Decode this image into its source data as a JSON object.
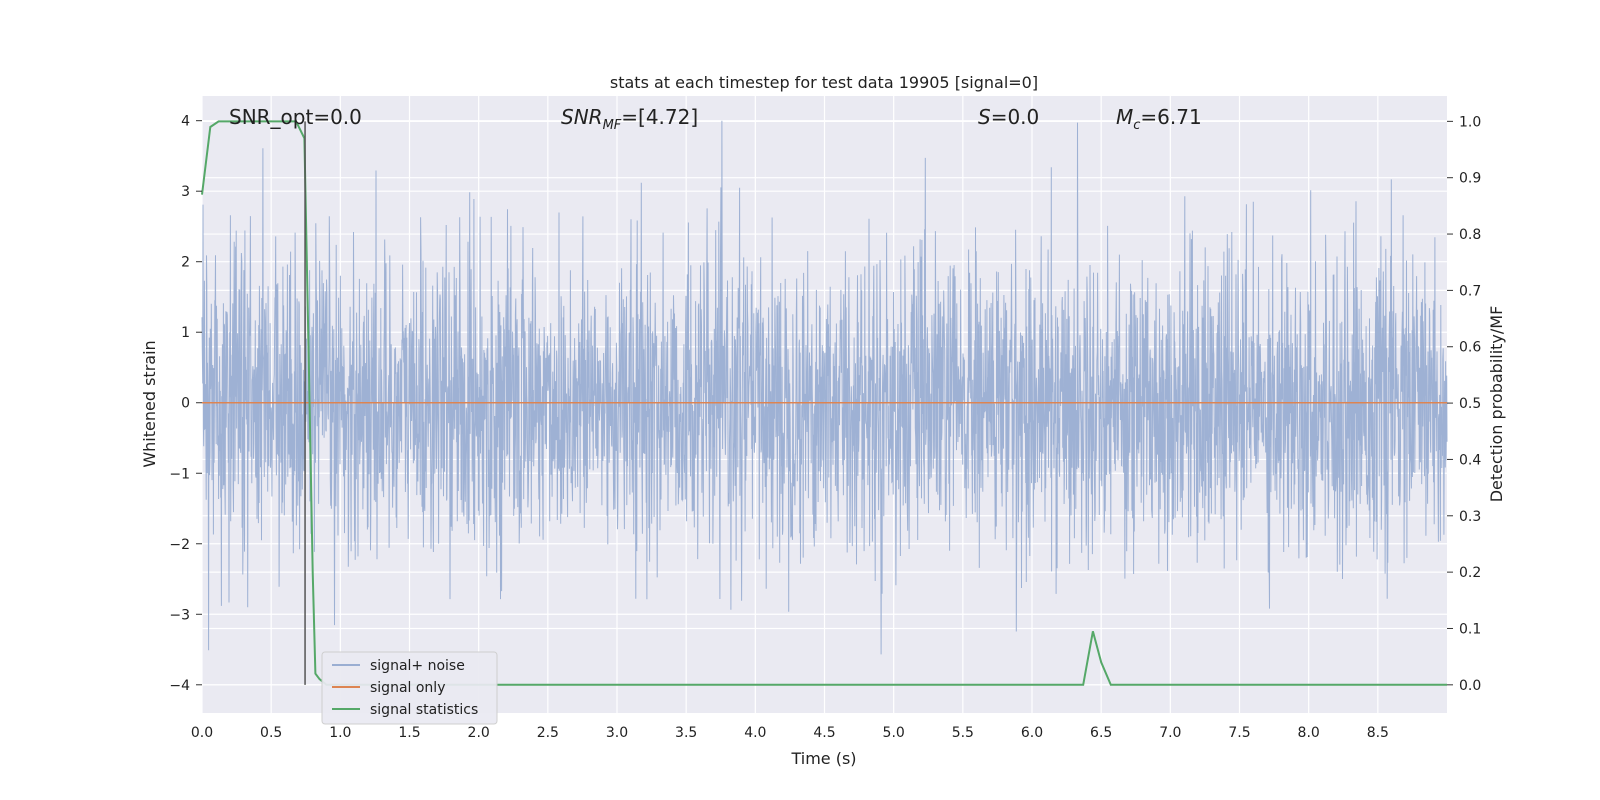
{
  "chart_data": {
    "type": "line",
    "title": "stats at each timestep for test data 19905 [signal=0]",
    "xlabel": "Time (s)",
    "ylabel_left": "Whitened strain",
    "ylabel_right": "Detection probability/MF",
    "xlim": [
      0,
      9.0
    ],
    "ylim_left": [
      -4.4,
      4.35
    ],
    "ylim_right": [
      -0.05,
      1.045
    ],
    "x_ticks": [
      "0.0",
      "0.5",
      "1.0",
      "1.5",
      "2.0",
      "2.5",
      "3.0",
      "3.5",
      "4.0",
      "4.5",
      "5.0",
      "5.5",
      "6.0",
      "6.5",
      "7.0",
      "7.5",
      "8.0",
      "8.5"
    ],
    "y_left_ticks": [
      "4",
      "3",
      "2",
      "1",
      "0",
      "−1",
      "−2",
      "−3",
      "−4"
    ],
    "y_right_ticks": [
      "1.0",
      "0.9",
      "0.8",
      "0.7",
      "0.6",
      "0.5",
      "0.4",
      "0.3",
      "0.2",
      "0.1",
      "0.0"
    ],
    "grid": true,
    "legend_position": "lower-left",
    "annotations": {
      "snr_opt": "SNR_opt=0.0",
      "snr_mf_main": "SNR",
      "snr_mf_sub": "MF",
      "snr_mf_value": "=[4.72]",
      "s_main": "S",
      "s_value": "=0.0",
      "mc_main": "M",
      "mc_sub": "c",
      "mc_value": "=6.71"
    },
    "series": [
      {
        "name": "signal+ noise",
        "axis": "left",
        "color": "#9aaed2",
        "style": "dense-noise",
        "envelope_approx": {
          "upper_peak": 4.0,
          "lower_peak": -4.0,
          "typical_amplitude": 2.3
        }
      },
      {
        "name": "signal only",
        "axis": "left",
        "color": "#dd8452",
        "x": [
          0.0,
          9.0
        ],
        "y": [
          0.0,
          0.0
        ]
      },
      {
        "name": "signal statistics",
        "axis": "right",
        "color": "#55a868",
        "x": [
          0.0,
          0.06,
          0.12,
          0.2,
          0.3,
          0.4,
          0.5,
          0.6,
          0.68,
          0.74,
          0.77,
          0.8,
          0.82,
          0.85,
          0.9,
          1.0,
          2.0,
          3.0,
          4.0,
          5.0,
          6.0,
          6.37,
          6.44,
          6.5,
          6.57,
          6.7,
          7.0,
          8.0,
          9.0
        ],
        "y": [
          0.87,
          0.99,
          1.0,
          1.0,
          1.0,
          1.0,
          1.0,
          1.0,
          1.0,
          0.97,
          0.6,
          0.2,
          0.02,
          0.01,
          0.0,
          0.0,
          0.0,
          0.0,
          0.0,
          0.0,
          0.0,
          0.0,
          0.095,
          0.04,
          0.0,
          0.0,
          0.0,
          0.0,
          0.0
        ]
      }
    ],
    "vertical_marker_x": 0.745
  },
  "colors": {
    "plot_background": "#eaeaf2",
    "grid": "#ffffff",
    "marker_line": "#555555"
  }
}
